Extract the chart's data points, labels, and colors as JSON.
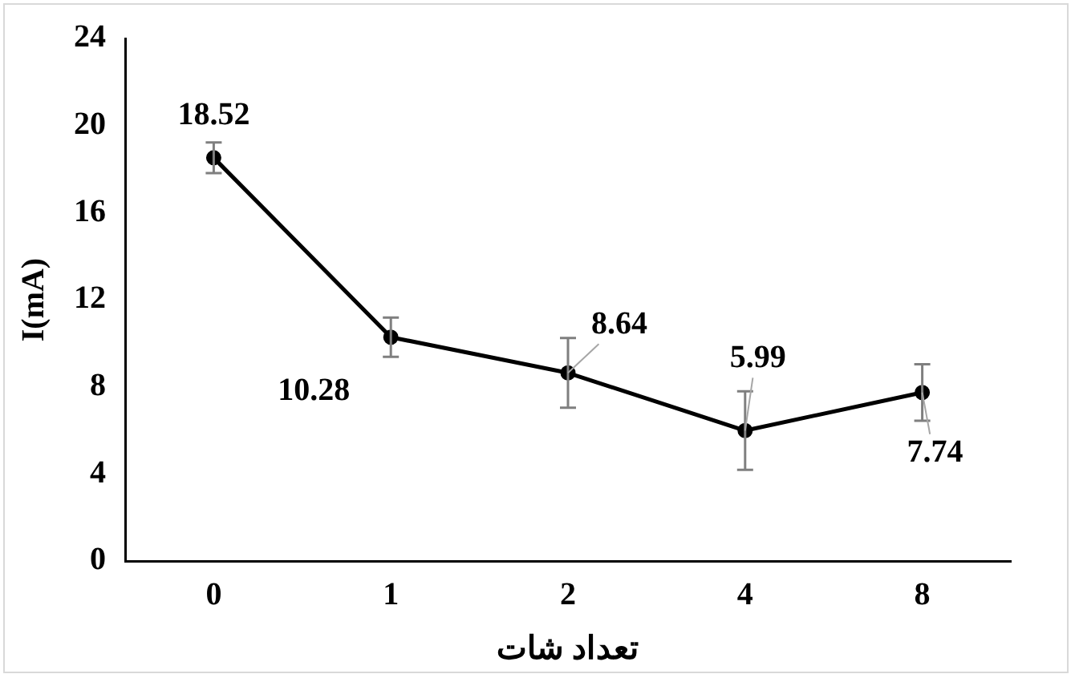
{
  "chart_data": {
    "type": "line",
    "xlabel": "تعداد شات",
    "ylabel": "I(mA)",
    "categories": [
      "0",
      "1",
      "2",
      "4",
      "8"
    ],
    "series": [
      {
        "color": "#000000",
        "values": [
          18.52,
          10.28,
          8.64,
          5.99,
          7.74
        ],
        "errors": [
          0.7,
          0.9,
          1.6,
          1.8,
          1.3
        ]
      }
    ],
    "ylim": [
      0,
      24
    ],
    "yticks": [
      0,
      4,
      8,
      12,
      16,
      20,
      24
    ],
    "grid": false,
    "legend": false,
    "marker": "circle",
    "line_style": "solid",
    "data_labels": true
  }
}
